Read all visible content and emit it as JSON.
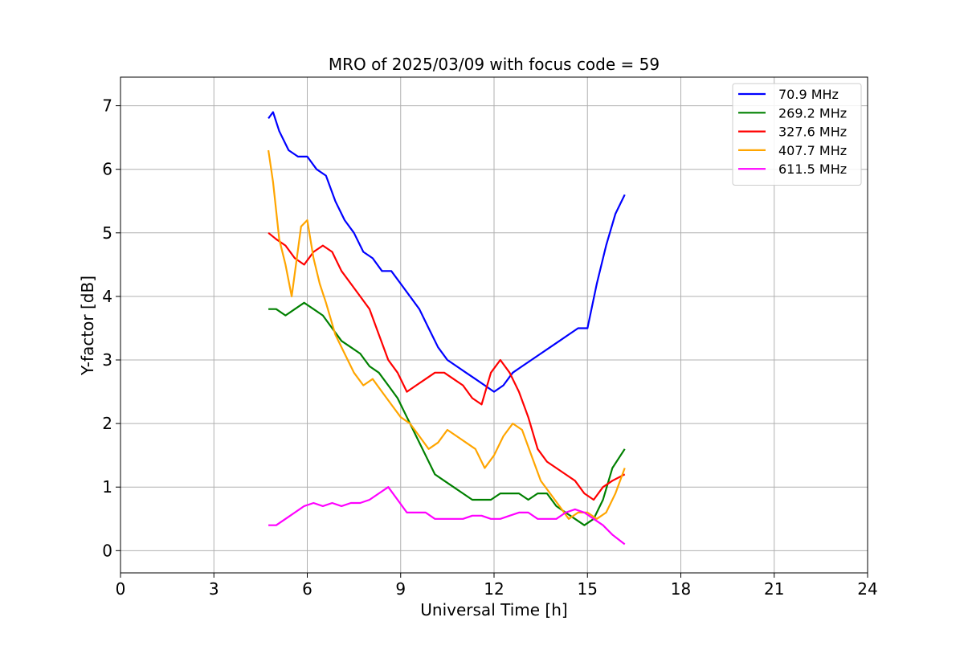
{
  "chart_data": {
    "type": "line",
    "title": "MRO of 2025/03/09 with focus code = 59",
    "xlabel": "Universal Time [h]",
    "ylabel": "Y-factor [dB]",
    "xlim": [
      0,
      24
    ],
    "ylim": [
      -0.35,
      7.45
    ],
    "x_ticks": [
      0,
      3,
      6,
      9,
      12,
      15,
      18,
      21,
      24
    ],
    "y_ticks": [
      0,
      1,
      2,
      3,
      4,
      5,
      6,
      7
    ],
    "grid": true,
    "legend_position": "top-right",
    "series": [
      {
        "name": " 70.9 MHz",
        "color": "#0000ff",
        "x": [
          4.75,
          4.9,
          5.1,
          5.4,
          5.7,
          6.0,
          6.3,
          6.6,
          6.9,
          7.2,
          7.5,
          7.8,
          8.1,
          8.4,
          8.7,
          9.0,
          9.3,
          9.6,
          9.9,
          10.2,
          10.5,
          10.8,
          11.1,
          11.4,
          11.7,
          12.0,
          12.3,
          12.6,
          12.9,
          13.2,
          13.5,
          13.8,
          14.1,
          14.4,
          14.7,
          15.0,
          15.3,
          15.6,
          15.9,
          16.2
        ],
        "y": [
          6.8,
          6.9,
          6.6,
          6.3,
          6.2,
          6.2,
          6.0,
          5.9,
          5.5,
          5.2,
          5.0,
          4.7,
          4.6,
          4.4,
          4.4,
          4.2,
          4.0,
          3.8,
          3.5,
          3.2,
          3.0,
          2.9,
          2.8,
          2.7,
          2.6,
          2.5,
          2.6,
          2.8,
          2.9,
          3.0,
          3.1,
          3.2,
          3.3,
          3.4,
          3.5,
          3.5,
          4.2,
          4.8,
          5.3,
          5.6
        ]
      },
      {
        "name": "269.2 MHz",
        "color": "#008000",
        "x": [
          4.75,
          5.0,
          5.3,
          5.6,
          5.9,
          6.2,
          6.5,
          6.8,
          7.1,
          7.4,
          7.7,
          8.0,
          8.3,
          8.6,
          8.9,
          9.2,
          9.5,
          9.8,
          10.1,
          10.4,
          10.7,
          11.0,
          11.3,
          11.6,
          11.9,
          12.2,
          12.5,
          12.8,
          13.1,
          13.4,
          13.7,
          14.0,
          14.3,
          14.6,
          14.9,
          15.2,
          15.5,
          15.8,
          16.2
        ],
        "y": [
          3.8,
          3.8,
          3.7,
          3.8,
          3.9,
          3.8,
          3.7,
          3.5,
          3.3,
          3.2,
          3.1,
          2.9,
          2.8,
          2.6,
          2.4,
          2.1,
          1.8,
          1.5,
          1.2,
          1.1,
          1.0,
          0.9,
          0.8,
          0.8,
          0.8,
          0.9,
          0.9,
          0.9,
          0.8,
          0.9,
          0.9,
          0.7,
          0.6,
          0.5,
          0.4,
          0.5,
          0.8,
          1.3,
          1.6
        ]
      },
      {
        "name": "327.6 MHz",
        "color": "#ff0000",
        "x": [
          4.75,
          5.0,
          5.3,
          5.6,
          5.9,
          6.2,
          6.5,
          6.8,
          7.1,
          7.4,
          7.7,
          8.0,
          8.3,
          8.6,
          8.9,
          9.2,
          9.5,
          9.8,
          10.1,
          10.4,
          10.7,
          11.0,
          11.3,
          11.6,
          11.9,
          12.2,
          12.5,
          12.8,
          13.1,
          13.4,
          13.7,
          14.0,
          14.3,
          14.6,
          14.9,
          15.2,
          15.5,
          15.8,
          16.2
        ],
        "y": [
          5.0,
          4.9,
          4.8,
          4.6,
          4.5,
          4.7,
          4.8,
          4.7,
          4.4,
          4.2,
          4.0,
          3.8,
          3.4,
          3.0,
          2.8,
          2.5,
          2.6,
          2.7,
          2.8,
          2.8,
          2.7,
          2.6,
          2.4,
          2.3,
          2.8,
          3.0,
          2.8,
          2.5,
          2.1,
          1.6,
          1.4,
          1.3,
          1.2,
          1.1,
          0.9,
          0.8,
          1.0,
          1.1,
          1.2
        ]
      },
      {
        "name": "407.7 MHz",
        "color": "#ffa500",
        "x": [
          4.75,
          4.9,
          5.1,
          5.3,
          5.5,
          5.8,
          6.0,
          6.2,
          6.4,
          6.6,
          6.9,
          7.2,
          7.5,
          7.8,
          8.1,
          8.4,
          8.7,
          9.0,
          9.3,
          9.6,
          9.9,
          10.2,
          10.5,
          10.8,
          11.1,
          11.4,
          11.7,
          12.0,
          12.3,
          12.6,
          12.9,
          13.2,
          13.5,
          13.8,
          14.1,
          14.4,
          14.7,
          15.0,
          15.3,
          15.6,
          15.9,
          16.2
        ],
        "y": [
          6.3,
          5.8,
          4.9,
          4.5,
          4.0,
          5.1,
          5.2,
          4.6,
          4.2,
          3.9,
          3.4,
          3.1,
          2.8,
          2.6,
          2.7,
          2.5,
          2.3,
          2.1,
          2.0,
          1.8,
          1.6,
          1.7,
          1.9,
          1.8,
          1.7,
          1.6,
          1.3,
          1.5,
          1.8,
          2.0,
          1.9,
          1.5,
          1.1,
          0.9,
          0.7,
          0.5,
          0.6,
          0.6,
          0.5,
          0.6,
          0.9,
          1.3
        ]
      },
      {
        "name": "611.5 MHz",
        "color": "#ff00ff",
        "x": [
          4.75,
          5.0,
          5.3,
          5.6,
          5.9,
          6.2,
          6.5,
          6.8,
          7.1,
          7.4,
          7.7,
          8.0,
          8.3,
          8.6,
          8.9,
          9.2,
          9.5,
          9.8,
          10.1,
          10.4,
          10.7,
          11.0,
          11.3,
          11.6,
          11.9,
          12.2,
          12.5,
          12.8,
          13.1,
          13.4,
          13.7,
          14.0,
          14.3,
          14.6,
          14.9,
          15.2,
          15.5,
          15.8,
          16.2
        ],
        "y": [
          0.4,
          0.4,
          0.5,
          0.6,
          0.7,
          0.75,
          0.7,
          0.75,
          0.7,
          0.75,
          0.75,
          0.8,
          0.9,
          1.0,
          0.8,
          0.6,
          0.6,
          0.6,
          0.5,
          0.5,
          0.5,
          0.5,
          0.55,
          0.55,
          0.5,
          0.5,
          0.55,
          0.6,
          0.6,
          0.5,
          0.5,
          0.5,
          0.6,
          0.65,
          0.6,
          0.5,
          0.4,
          0.25,
          0.1
        ]
      }
    ]
  }
}
